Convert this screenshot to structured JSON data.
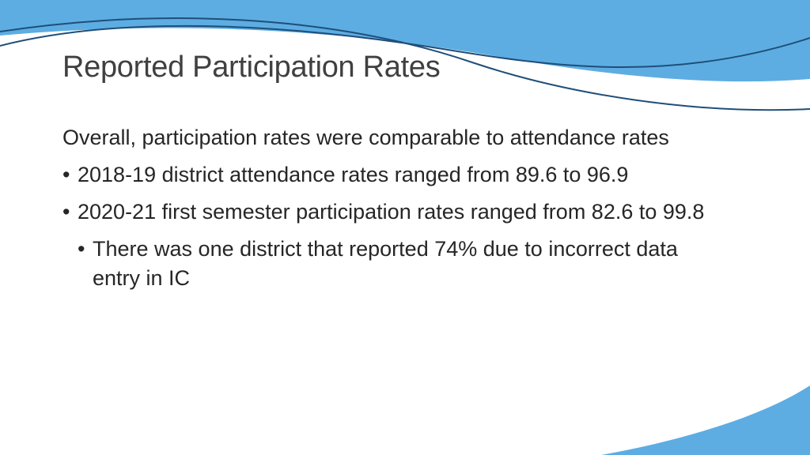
{
  "slide": {
    "title": "Reported Participation Rates",
    "intro": "Overall, participation rates were comparable to attendance rates",
    "bullet_glyph": "•",
    "bullets": [
      {
        "text": "2018-19 district attendance rates ranged from 89.6 to 96.9"
      },
      {
        "text": "2020-21 first semester participation rates ranged from 82.6 to 99.8",
        "sub": [
          {
            "text": "There was one district that reported 74% due to incorrect data entry in IC"
          }
        ]
      }
    ]
  },
  "theme": {
    "accent": "#5DADE2",
    "accent_dark": "#1F4E79",
    "title_color": "#404040",
    "text_color": "#262626"
  }
}
